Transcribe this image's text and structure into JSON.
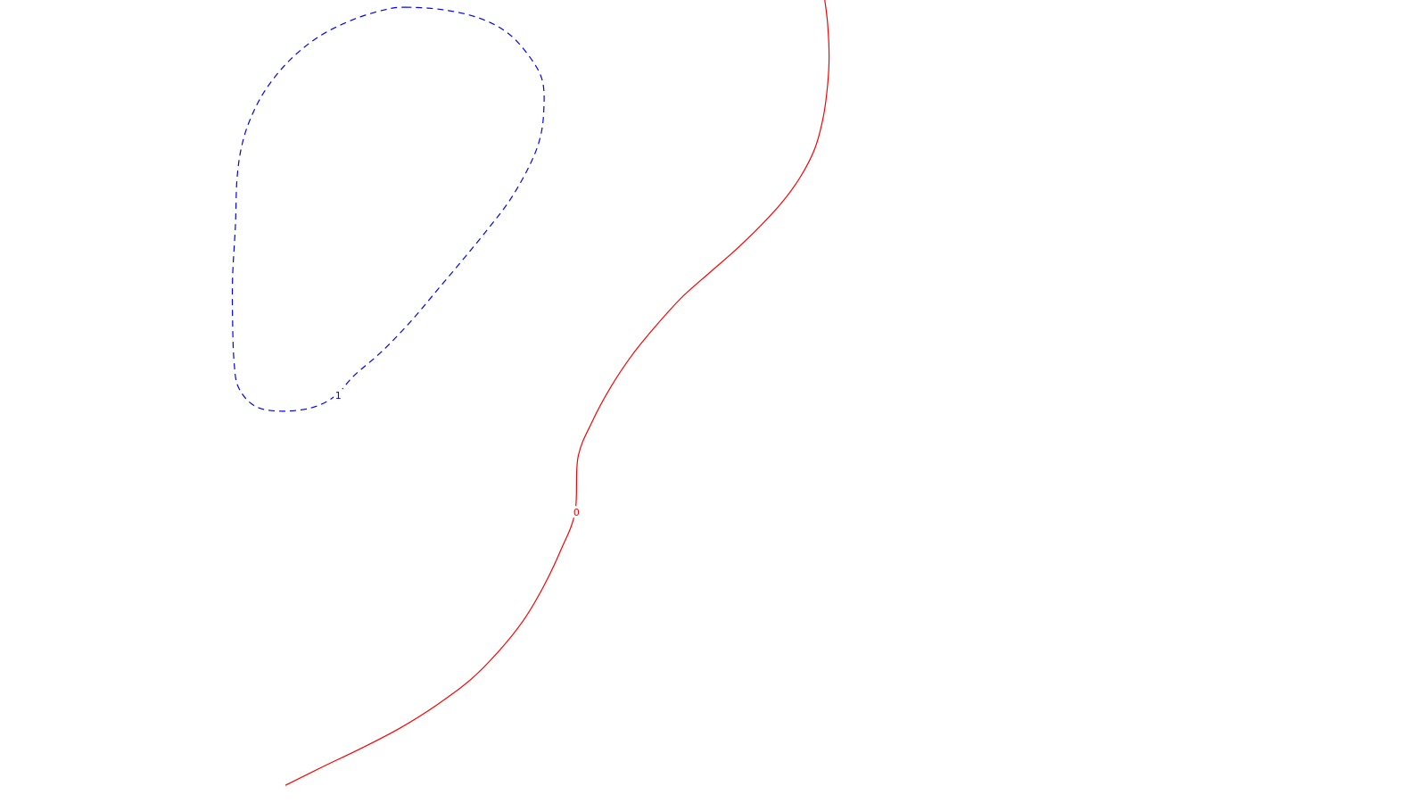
{
  "chart_data": {
    "type": "contour",
    "title": "",
    "xlabel": "",
    "ylabel": "",
    "grid": false,
    "axes_visible": false,
    "series": [
      {
        "level": "0",
        "label": "0",
        "color": "#ff0000",
        "style": "solid",
        "closed": false,
        "points": [
          [
            0.578,
            0.0
          ],
          [
            0.58,
            0.03
          ],
          [
            0.581,
            0.07
          ],
          [
            0.58,
            0.105
          ],
          [
            0.577,
            0.145
          ],
          [
            0.571,
            0.185
          ],
          [
            0.561,
            0.22
          ],
          [
            0.548,
            0.252
          ],
          [
            0.532,
            0.283
          ],
          [
            0.515,
            0.312
          ],
          [
            0.497,
            0.34
          ],
          [
            0.478,
            0.37
          ],
          [
            0.46,
            0.405
          ],
          [
            0.443,
            0.442
          ],
          [
            0.428,
            0.482
          ],
          [
            0.415,
            0.525
          ],
          [
            0.405,
            0.57
          ],
          [
            0.403,
            0.638
          ],
          [
            0.393,
            0.685
          ],
          [
            0.381,
            0.73
          ],
          [
            0.367,
            0.772
          ],
          [
            0.35,
            0.81
          ],
          [
            0.33,
            0.846
          ],
          [
            0.306,
            0.878
          ],
          [
            0.28,
            0.907
          ],
          [
            0.253,
            0.932
          ],
          [
            0.226,
            0.955
          ],
          [
            0.2,
            0.978
          ]
        ]
      },
      {
        "level": "1",
        "label": "1",
        "color": "#0000ff",
        "style": "dashed",
        "closed": true,
        "points": [
          [
            0.284,
            0.009
          ],
          [
            0.31,
            0.012
          ],
          [
            0.335,
            0.022
          ],
          [
            0.355,
            0.04
          ],
          [
            0.37,
            0.068
          ],
          [
            0.38,
            0.1
          ],
          [
            0.381,
            0.14
          ],
          [
            0.378,
            0.175
          ],
          [
            0.37,
            0.21
          ],
          [
            0.357,
            0.25
          ],
          [
            0.342,
            0.285
          ],
          [
            0.325,
            0.322
          ],
          [
            0.307,
            0.36
          ],
          [
            0.288,
            0.4
          ],
          [
            0.268,
            0.437
          ],
          [
            0.248,
            0.468
          ],
          [
            0.235,
            0.493
          ],
          [
            0.218,
            0.508
          ],
          [
            0.195,
            0.512
          ],
          [
            0.178,
            0.505
          ],
          [
            0.167,
            0.482
          ],
          [
            0.164,
            0.45
          ],
          [
            0.163,
            0.4
          ],
          [
            0.163,
            0.345
          ],
          [
            0.165,
            0.28
          ],
          [
            0.166,
            0.225
          ],
          [
            0.169,
            0.185
          ],
          [
            0.175,
            0.15
          ],
          [
            0.186,
            0.112
          ],
          [
            0.203,
            0.075
          ],
          [
            0.224,
            0.045
          ],
          [
            0.248,
            0.024
          ],
          [
            0.27,
            0.012
          ]
        ]
      }
    ],
    "labels": [
      {
        "text": "0",
        "color": "#ff0000",
        "at": [
          0.404,
          0.638
        ]
      },
      {
        "text": "1",
        "color": "#0000ff",
        "at": [
          0.237,
          0.492
        ]
      }
    ]
  }
}
